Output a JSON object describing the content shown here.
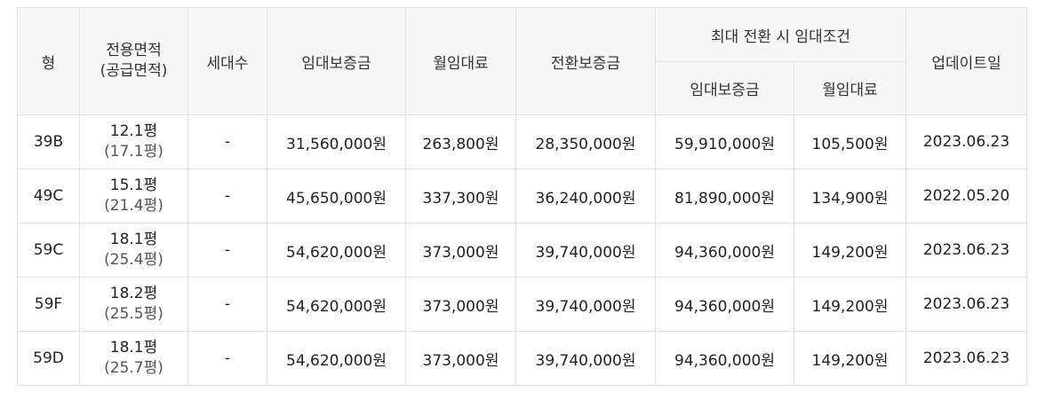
{
  "header": {
    "type": "형",
    "area_line1": "전용면적",
    "area_line2": "(공급면적)",
    "households": "세대수",
    "deposit": "임대보증금",
    "monthly": "월임대료",
    "conversion": "전환보증금",
    "max_group": "최대 전환 시 임대조건",
    "max_deposit": "임대보증금",
    "max_monthly": "월임대료",
    "updated": "업데이트일"
  },
  "rows": [
    {
      "type": "39B",
      "area": "12.1평",
      "supply": "(17.1평)",
      "households": "-",
      "deposit": "31,560,000원",
      "monthly": "263,800원",
      "conversion": "28,350,000원",
      "max_deposit": "59,910,000원",
      "max_monthly": "105,500원",
      "updated": "2023.06.23"
    },
    {
      "type": "49C",
      "area": "15.1평",
      "supply": "(21.4평)",
      "households": "-",
      "deposit": "45,650,000원",
      "monthly": "337,300원",
      "conversion": "36,240,000원",
      "max_deposit": "81,890,000원",
      "max_monthly": "134,900원",
      "updated": "2022.05.20"
    },
    {
      "type": "59C",
      "area": "18.1평",
      "supply": "(25.4평)",
      "households": "-",
      "deposit": "54,620,000원",
      "monthly": "373,000원",
      "conversion": "39,740,000원",
      "max_deposit": "94,360,000원",
      "max_monthly": "149,200원",
      "updated": "2023.06.23"
    },
    {
      "type": "59F",
      "area": "18.2평",
      "supply": "(25.5평)",
      "households": "-",
      "deposit": "54,620,000원",
      "monthly": "373,000원",
      "conversion": "39,740,000원",
      "max_deposit": "94,360,000원",
      "max_monthly": "149,200원",
      "updated": "2023.06.23"
    },
    {
      "type": "59D",
      "area": "18.1평",
      "supply": "(25.7평)",
      "households": "-",
      "deposit": "54,620,000원",
      "monthly": "373,000원",
      "conversion": "39,740,000원",
      "max_deposit": "94,360,000원",
      "max_monthly": "149,200원",
      "updated": "2023.06.23"
    }
  ]
}
